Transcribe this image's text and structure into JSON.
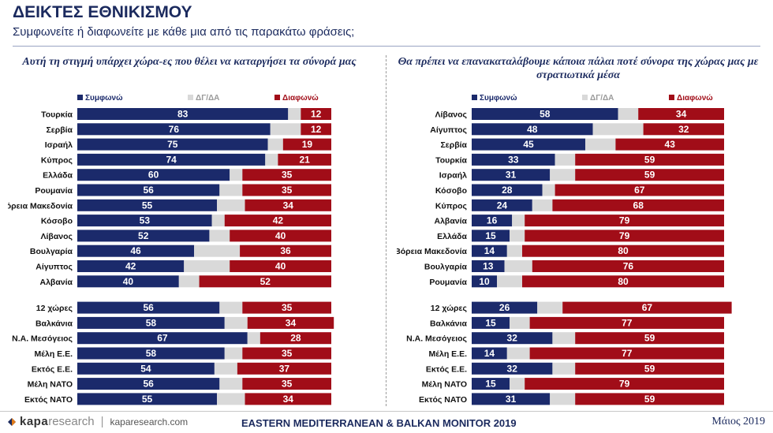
{
  "header": {
    "title": "ΔΕΙΚΤΕΣ ΕΘΝΙΚΙΣΜΟΥ",
    "subtitle": "Συμφωνείτε ή διαφωνείτε με κάθε μια από τις παρακάτω φράσεις;"
  },
  "footer": {
    "logo_kapa": "kapa",
    "logo_research": "research",
    "site": "kaparesearch.com",
    "monitor": "EASTERN MEDITERRANEAN & BALKAN MONITOR 2019",
    "date": "Μάιος 2019"
  },
  "colors": {
    "agree": "#1b2a6b",
    "dk": "#d9d9d9",
    "disagree": "#a10d18"
  },
  "chart_data": [
    {
      "type": "bar",
      "orientation": "horizontal",
      "stacked": true,
      "title": "Αυτή τη στιγμή υπάρχει χώρα-ες που θέλει να καταργήσει τα σύνορά μας",
      "legend": [
        "Συμφωνώ",
        "ΔΓ/ΔΑ",
        "Διαφωνώ"
      ],
      "legend_position": "top",
      "categories": [
        "Τουρκία",
        "Σερβία",
        "Ισραήλ",
        "Κύπρος",
        "Ελλάδα",
        "Ρουμανία",
        "Βόρεια Μακεδονία",
        "Κόσοβο",
        "Λίβανος",
        "Βουλγαρία",
        "Αίγυπτος",
        "Αλβανία",
        "12 χώρες",
        "Βαλκάνια",
        "Ν.Α. Μεσόγειος",
        "Μέλη Ε.Ε.",
        "Εκτός Ε.Ε.",
        "Μέλη ΝΑΤΟ",
        "Εκτός ΝΑΤΟ"
      ],
      "group_break_after": 12,
      "series": [
        {
          "name": "Συμφωνώ",
          "values": [
            83,
            76,
            75,
            74,
            60,
            56,
            55,
            53,
            52,
            46,
            42,
            40,
            56,
            58,
            67,
            58,
            54,
            56,
            55
          ]
        },
        {
          "name": "ΔΓ/ΔΑ",
          "values": [
            5,
            12,
            6,
            5,
            5,
            9,
            11,
            5,
            8,
            18,
            18,
            8,
            9,
            9,
            5,
            7,
            9,
            9,
            11
          ]
        },
        {
          "name": "Διαφωνώ",
          "values": [
            12,
            12,
            19,
            21,
            35,
            35,
            34,
            42,
            40,
            36,
            40,
            52,
            35,
            34,
            28,
            35,
            37,
            35,
            34
          ]
        }
      ]
    },
    {
      "type": "bar",
      "orientation": "horizontal",
      "stacked": true,
      "title": "Θα πρέπει να επανακαταλάβουμε κάποια πάλαι ποτέ σύνορα της χώρας μας με στρατιωτικά μέσα",
      "legend": [
        "Συμφωνώ",
        "ΔΓ/ΔΑ",
        "Διαφωνώ"
      ],
      "legend_position": "top",
      "categories": [
        "Λίβανος",
        "Αίγυπτος",
        "Σερβία",
        "Τουρκία",
        "Ισραήλ",
        "Κόσοβο",
        "Κύπρος",
        "Αλβανία",
        "Ελλάδα",
        "Βόρεια Μακεδονία",
        "Βουλγαρία",
        "Ρουμανία",
        "12 χώρες",
        "Βαλκάνια",
        "Ν.Α. Μεσόγειος",
        "Μέλη Ε.Ε.",
        "Εκτός Ε.Ε.",
        "Μέλη ΝΑΤΟ",
        "Εκτός ΝΑΤΟ"
      ],
      "group_break_after": 12,
      "series": [
        {
          "name": "Συμφωνώ",
          "values": [
            58,
            48,
            45,
            33,
            31,
            28,
            24,
            16,
            15,
            14,
            13,
            10,
            26,
            15,
            32,
            14,
            32,
            15,
            31
          ]
        },
        {
          "name": "ΔΓ/ΔΑ",
          "values": [
            8,
            20,
            12,
            8,
            10,
            5,
            8,
            5,
            6,
            6,
            11,
            10,
            10,
            8,
            9,
            9,
            9,
            6,
            10
          ]
        },
        {
          "name": "Διαφωνώ",
          "values": [
            34,
            32,
            43,
            59,
            59,
            67,
            68,
            79,
            79,
            80,
            76,
            80,
            67,
            77,
            59,
            77,
            59,
            79,
            59
          ]
        }
      ]
    }
  ]
}
